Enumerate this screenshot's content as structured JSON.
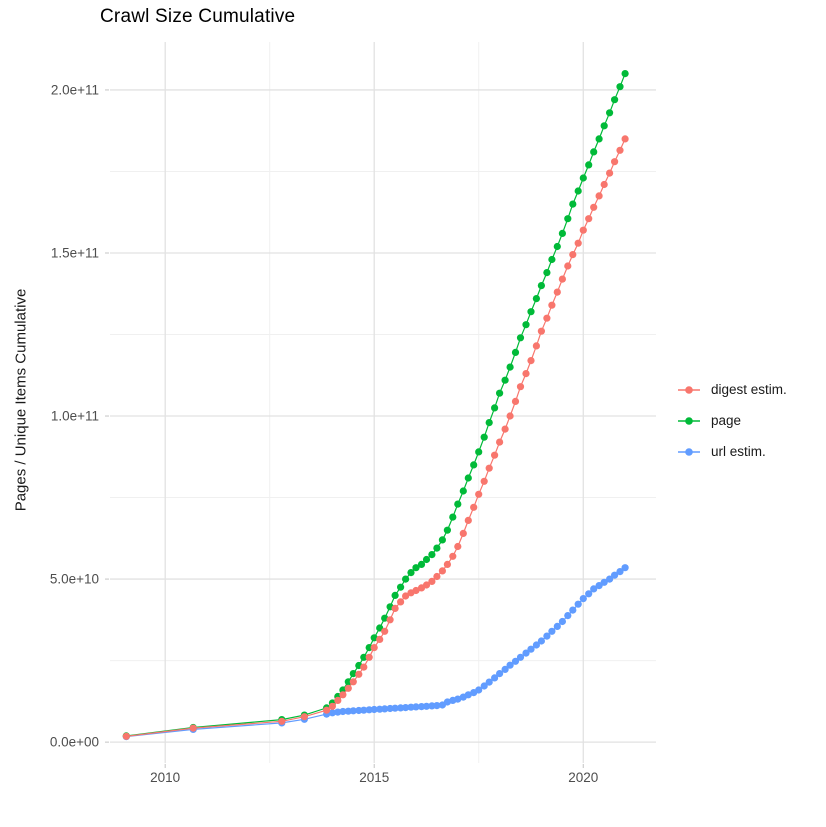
{
  "chart_data": {
    "type": "scatter",
    "title": "Crawl Size Cumulative",
    "xlabel": "",
    "ylabel": "Pages / Unique Items Cumulative",
    "xlim": [
      2008.68,
      2021.74
    ],
    "ylim": [
      -6400000000.0,
      214700000000.0
    ],
    "grid": true,
    "legend_position": "right",
    "x_ticks": [
      {
        "label": "2010",
        "value": 2010
      },
      {
        "label": "2015",
        "value": 2015
      },
      {
        "label": "2020",
        "value": 2020
      }
    ],
    "x_minor_ticks": [
      2012.5,
      2017.5
    ],
    "y_ticks": [
      {
        "label": "0.0e+00",
        "value": 0
      },
      {
        "label": "5.0e+10",
        "value": 50000000000.0
      },
      {
        "label": "1.0e+11",
        "value": 100000000000.0
      },
      {
        "label": "1.5e+11",
        "value": 150000000000.0
      },
      {
        "label": "2.0e+11",
        "value": 200000000000.0
      }
    ],
    "y_minor_ticks": [
      25000000000.0,
      75000000000.0,
      125000000000.0,
      175000000000.0
    ],
    "series": [
      {
        "name": "digest estim.",
        "color": "#F8766D",
        "points": [
          [
            2009.07,
            1800000000.0
          ],
          [
            2010.67,
            4300000000.0
          ],
          [
            2012.79,
            6400000000.0
          ],
          [
            2013.33,
            7800000000.0
          ],
          [
            2013.86,
            9800000000.0
          ],
          [
            2014.0,
            11000000000.0
          ],
          [
            2014.13,
            12800000000.0
          ],
          [
            2014.25,
            14500000000.0
          ],
          [
            2014.38,
            16500000000.0
          ],
          [
            2014.5,
            18500000000.0
          ],
          [
            2014.63,
            20800000000.0
          ],
          [
            2014.75,
            23000000000.0
          ],
          [
            2014.88,
            26000000000.0
          ],
          [
            2015.0,
            29000000000.0
          ],
          [
            2015.13,
            31500000000.0
          ],
          [
            2015.25,
            34000000000.0
          ],
          [
            2015.38,
            37500000000.0
          ],
          [
            2015.5,
            41000000000.0
          ],
          [
            2015.63,
            43000000000.0
          ],
          [
            2015.75,
            44800000000.0
          ],
          [
            2015.88,
            45800000000.0
          ],
          [
            2016.0,
            46500000000.0
          ],
          [
            2016.13,
            47300000000.0
          ],
          [
            2016.25,
            48200000000.0
          ],
          [
            2016.38,
            49300000000.0
          ],
          [
            2016.5,
            50800000000.0
          ],
          [
            2016.63,
            52500000000.0
          ],
          [
            2016.75,
            54500000000.0
          ],
          [
            2016.88,
            57000000000.0
          ],
          [
            2017.0,
            60000000000.0
          ],
          [
            2017.13,
            64000000000.0
          ],
          [
            2017.25,
            68000000000.0
          ],
          [
            2017.38,
            72000000000.0
          ],
          [
            2017.5,
            76000000000.0
          ],
          [
            2017.63,
            80000000000.0
          ],
          [
            2017.75,
            84000000000.0
          ],
          [
            2017.88,
            88000000000.0
          ],
          [
            2018.0,
            92000000000.0
          ],
          [
            2018.13,
            96000000000.0
          ],
          [
            2018.25,
            100000000000.0
          ],
          [
            2018.38,
            104500000000.0
          ],
          [
            2018.5,
            109000000000.0
          ],
          [
            2018.63,
            113000000000.0
          ],
          [
            2018.75,
            117000000000.0
          ],
          [
            2018.88,
            121500000000.0
          ],
          [
            2019.0,
            126000000000.0
          ],
          [
            2019.13,
            130000000000.0
          ],
          [
            2019.25,
            134000000000.0
          ],
          [
            2019.38,
            138000000000.0
          ],
          [
            2019.5,
            142000000000.0
          ],
          [
            2019.63,
            146000000000.0
          ],
          [
            2019.75,
            149500000000.0
          ],
          [
            2019.88,
            153000000000.0
          ],
          [
            2020.0,
            157000000000.0
          ],
          [
            2020.13,
            160500000000.0
          ],
          [
            2020.25,
            164000000000.0
          ],
          [
            2020.38,
            167500000000.0
          ],
          [
            2020.5,
            171000000000.0
          ],
          [
            2020.63,
            174500000000.0
          ],
          [
            2020.75,
            178000000000.0
          ],
          [
            2020.88,
            181500000000.0
          ],
          [
            2021.0,
            185000000000.0
          ]
        ]
      },
      {
        "name": "page",
        "color": "#00BA38",
        "points": [
          [
            2009.07,
            1900000000.0
          ],
          [
            2010.67,
            4500000000.0
          ],
          [
            2012.79,
            6900000000.0
          ],
          [
            2013.33,
            8300000000.0
          ],
          [
            2013.86,
            10500000000.0
          ],
          [
            2014.0,
            12000000000.0
          ],
          [
            2014.13,
            14000000000.0
          ],
          [
            2014.25,
            16000000000.0
          ],
          [
            2014.38,
            18500000000.0
          ],
          [
            2014.5,
            21000000000.0
          ],
          [
            2014.63,
            23500000000.0
          ],
          [
            2014.75,
            26000000000.0
          ],
          [
            2014.88,
            29000000000.0
          ],
          [
            2015.0,
            32000000000.0
          ],
          [
            2015.13,
            35000000000.0
          ],
          [
            2015.25,
            38000000000.0
          ],
          [
            2015.38,
            41500000000.0
          ],
          [
            2015.5,
            45000000000.0
          ],
          [
            2015.63,
            47500000000.0
          ],
          [
            2015.75,
            50000000000.0
          ],
          [
            2015.88,
            52000000000.0
          ],
          [
            2016.0,
            53500000000.0
          ],
          [
            2016.13,
            54500000000.0
          ],
          [
            2016.25,
            56000000000.0
          ],
          [
            2016.38,
            57500000000.0
          ],
          [
            2016.5,
            59500000000.0
          ],
          [
            2016.63,
            62000000000.0
          ],
          [
            2016.75,
            65000000000.0
          ],
          [
            2016.88,
            69000000000.0
          ],
          [
            2017.0,
            73000000000.0
          ],
          [
            2017.13,
            77000000000.0
          ],
          [
            2017.25,
            81000000000.0
          ],
          [
            2017.38,
            85000000000.0
          ],
          [
            2017.5,
            89000000000.0
          ],
          [
            2017.63,
            93500000000.0
          ],
          [
            2017.75,
            98000000000.0
          ],
          [
            2017.88,
            102500000000.0
          ],
          [
            2018.0,
            107000000000.0
          ],
          [
            2018.13,
            111000000000.0
          ],
          [
            2018.25,
            115000000000.0
          ],
          [
            2018.38,
            119500000000.0
          ],
          [
            2018.5,
            124000000000.0
          ],
          [
            2018.63,
            128000000000.0
          ],
          [
            2018.75,
            132000000000.0
          ],
          [
            2018.88,
            136000000000.0
          ],
          [
            2019.0,
            140000000000.0
          ],
          [
            2019.13,
            144000000000.0
          ],
          [
            2019.25,
            148000000000.0
          ],
          [
            2019.38,
            152000000000.0
          ],
          [
            2019.5,
            156000000000.0
          ],
          [
            2019.63,
            160500000000.0
          ],
          [
            2019.75,
            165000000000.0
          ],
          [
            2019.88,
            169000000000.0
          ],
          [
            2020.0,
            173000000000.0
          ],
          [
            2020.13,
            177000000000.0
          ],
          [
            2020.25,
            181000000000.0
          ],
          [
            2020.38,
            185000000000.0
          ],
          [
            2020.5,
            189000000000.0
          ],
          [
            2020.63,
            193000000000.0
          ],
          [
            2020.75,
            197000000000.0
          ],
          [
            2020.88,
            201000000000.0
          ],
          [
            2021.0,
            205000000000.0
          ]
        ]
      },
      {
        "name": "url estim.",
        "color": "#619CFF",
        "points": [
          [
            2009.07,
            1700000000.0
          ],
          [
            2010.67,
            3900000000.0
          ],
          [
            2012.79,
            5900000000.0
          ],
          [
            2013.33,
            7000000000.0
          ],
          [
            2013.86,
            8600000000.0
          ],
          [
            2014.0,
            9000000000.0
          ],
          [
            2014.13,
            9200000000.0
          ],
          [
            2014.25,
            9400000000.0
          ],
          [
            2014.38,
            9500000000.0
          ],
          [
            2014.5,
            9600000000.0
          ],
          [
            2014.63,
            9700000000.0
          ],
          [
            2014.75,
            9800000000.0
          ],
          [
            2014.88,
            9900000000.0
          ],
          [
            2015.0,
            10000000000.0
          ],
          [
            2015.13,
            10100000000.0
          ],
          [
            2015.25,
            10200000000.0
          ],
          [
            2015.38,
            10300000000.0
          ],
          [
            2015.5,
            10400000000.0
          ],
          [
            2015.63,
            10500000000.0
          ],
          [
            2015.75,
            10600000000.0
          ],
          [
            2015.88,
            10700000000.0
          ],
          [
            2016.0,
            10800000000.0
          ],
          [
            2016.13,
            10900000000.0
          ],
          [
            2016.25,
            11000000000.0
          ],
          [
            2016.38,
            11100000000.0
          ],
          [
            2016.5,
            11200000000.0
          ],
          [
            2016.63,
            11400000000.0
          ],
          [
            2016.75,
            12300000000.0
          ],
          [
            2016.88,
            12800000000.0
          ],
          [
            2017.0,
            13200000000.0
          ],
          [
            2017.13,
            13800000000.0
          ],
          [
            2017.25,
            14500000000.0
          ],
          [
            2017.38,
            15200000000.0
          ],
          [
            2017.5,
            16000000000.0
          ],
          [
            2017.63,
            17200000000.0
          ],
          [
            2017.75,
            18400000000.0
          ],
          [
            2017.88,
            19700000000.0
          ],
          [
            2018.0,
            21000000000.0
          ],
          [
            2018.13,
            22300000000.0
          ],
          [
            2018.25,
            23600000000.0
          ],
          [
            2018.38,
            24800000000.0
          ],
          [
            2018.5,
            26000000000.0
          ],
          [
            2018.63,
            27300000000.0
          ],
          [
            2018.75,
            28500000000.0
          ],
          [
            2018.88,
            29800000000.0
          ],
          [
            2019.0,
            31000000000.0
          ],
          [
            2019.13,
            32500000000.0
          ],
          [
            2019.25,
            34000000000.0
          ],
          [
            2019.38,
            35500000000.0
          ],
          [
            2019.5,
            37000000000.0
          ],
          [
            2019.63,
            38800000000.0
          ],
          [
            2019.75,
            40500000000.0
          ],
          [
            2019.88,
            42300000000.0
          ],
          [
            2020.0,
            44000000000.0
          ],
          [
            2020.13,
            45500000000.0
          ],
          [
            2020.25,
            47000000000.0
          ],
          [
            2020.38,
            48000000000.0
          ],
          [
            2020.5,
            49000000000.0
          ],
          [
            2020.63,
            50000000000.0
          ],
          [
            2020.75,
            51200000000.0
          ],
          [
            2020.88,
            52300000000.0
          ],
          [
            2021.0,
            53500000000.0
          ]
        ]
      }
    ]
  },
  "colors": {
    "grid_major": "#e2e2e2",
    "grid_minor": "#f0f0f0",
    "axis_tick": "#c4c4c4",
    "tick_label": "#4d4d4d",
    "text": "#1a1a1a",
    "background": "#ffffff"
  }
}
